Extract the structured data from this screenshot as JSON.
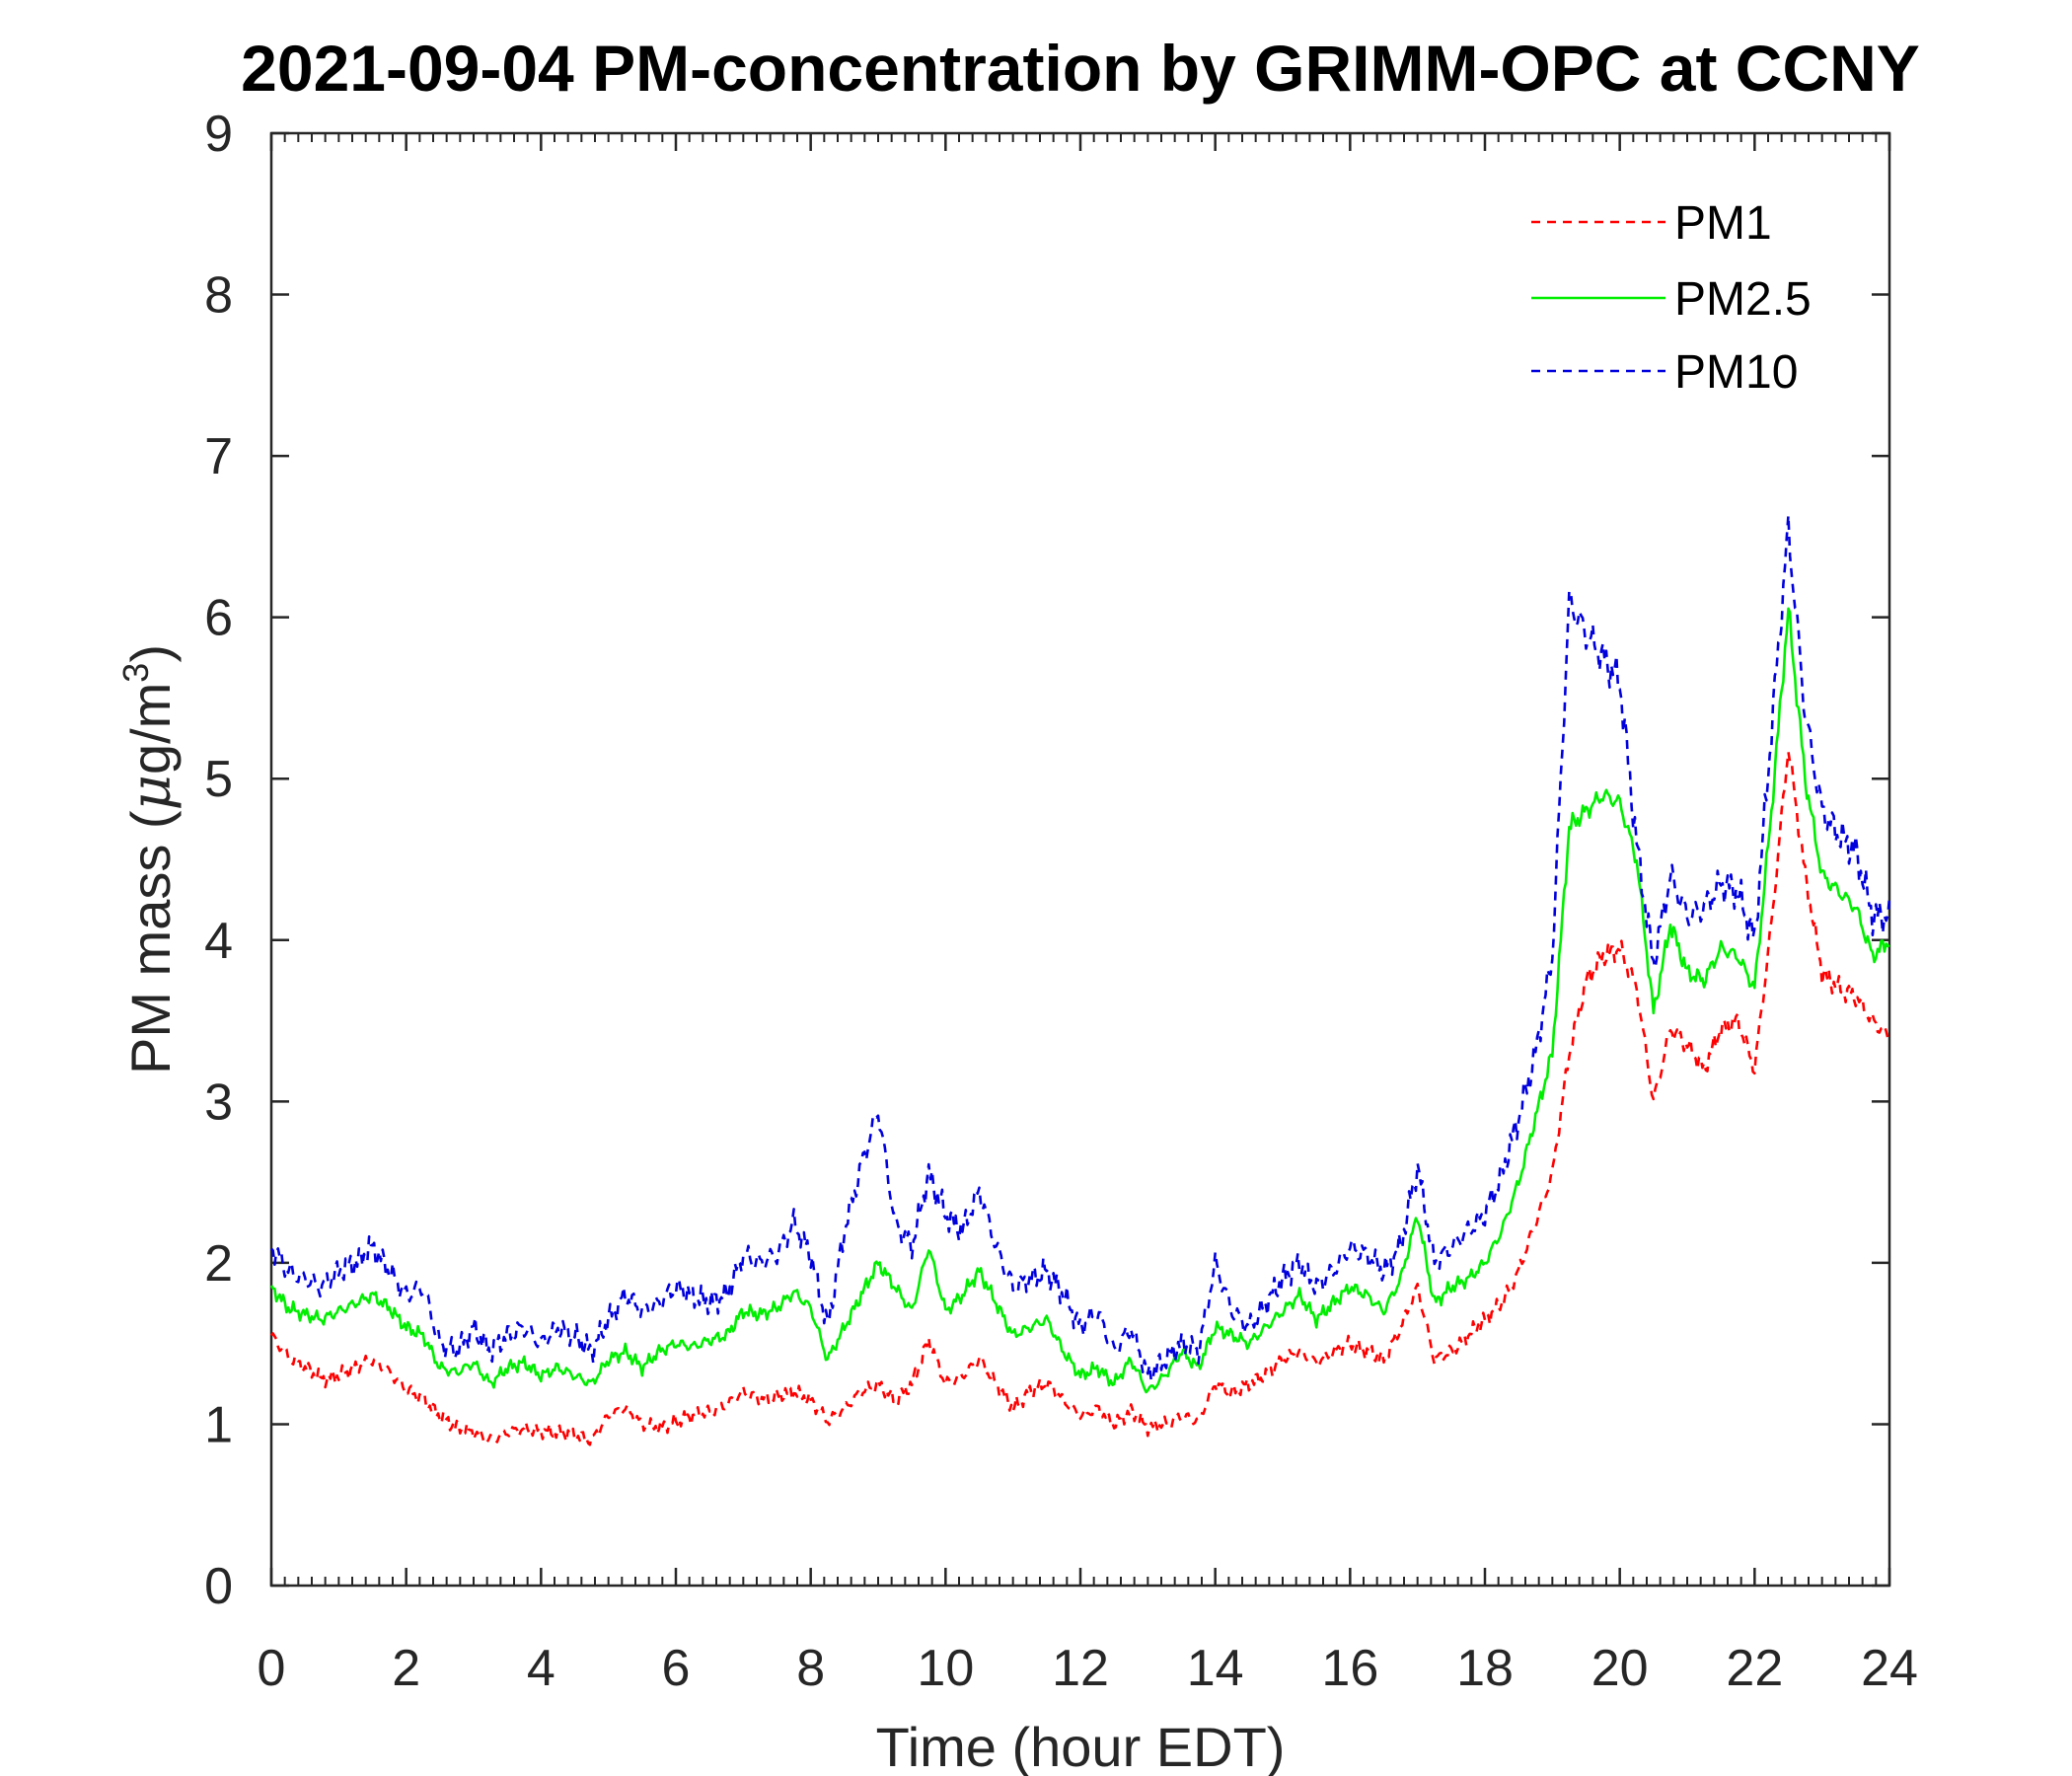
{
  "chart_data": {
    "type": "line",
    "title": "2021-09-04 PM-concentration by GRIMM-OPC at CCNY",
    "xlabel": "Time (hour EDT)",
    "ylabel_prefix": "PM mass (",
    "ylabel_mu": "μ",
    "ylabel_mid": "g/m",
    "ylabel_sup": "3",
    "ylabel_suffix": ")",
    "xlim": [
      0,
      24
    ],
    "ylim": [
      0,
      9
    ],
    "xticks": [
      0,
      2,
      4,
      6,
      8,
      10,
      12,
      14,
      16,
      18,
      20,
      22,
      24
    ],
    "yticks": [
      0,
      1,
      2,
      3,
      4,
      5,
      6,
      7,
      8,
      9
    ],
    "legend_position": "top-right",
    "grid": false,
    "series": [
      {
        "name": "PM1",
        "color": "#ff0000",
        "style": "dashed",
        "x": [
          0,
          0.25,
          0.5,
          0.75,
          1.0,
          1.25,
          1.5,
          1.75,
          2.0,
          2.25,
          2.5,
          2.75,
          3.0,
          3.25,
          3.5,
          3.75,
          4.0,
          4.25,
          4.5,
          4.75,
          5.0,
          5.25,
          5.5,
          5.75,
          6.0,
          6.25,
          6.5,
          6.75,
          7.0,
          7.25,
          7.5,
          7.75,
          8.0,
          8.25,
          8.5,
          8.75,
          9.0,
          9.25,
          9.5,
          9.75,
          10.0,
          10.25,
          10.5,
          10.75,
          11.0,
          11.25,
          11.5,
          11.75,
          12.0,
          12.25,
          12.5,
          12.75,
          13.0,
          13.25,
          13.5,
          13.75,
          14.0,
          14.25,
          14.5,
          14.75,
          15.0,
          15.25,
          15.5,
          15.75,
          16.0,
          16.25,
          16.5,
          16.75,
          17.0,
          17.25,
          17.5,
          17.75,
          18.0,
          18.25,
          18.5,
          18.75,
          19.0,
          19.25,
          19.5,
          19.75,
          20.0,
          20.25,
          20.5,
          20.75,
          21.0,
          21.25,
          21.5,
          21.75,
          22.0,
          22.25,
          22.5,
          22.75,
          23.0,
          23.25,
          23.5,
          23.75,
          24.0
        ],
        "y": [
          1.55,
          1.42,
          1.35,
          1.28,
          1.3,
          1.35,
          1.4,
          1.32,
          1.22,
          1.15,
          1.05,
          0.98,
          0.95,
          0.9,
          0.95,
          0.97,
          0.96,
          0.95,
          0.93,
          0.9,
          1.05,
          1.1,
          1.0,
          0.98,
          1.02,
          1.05,
          1.08,
          1.12,
          1.2,
          1.15,
          1.18,
          1.2,
          1.15,
          1.02,
          1.1,
          1.2,
          1.25,
          1.15,
          1.25,
          1.52,
          1.25,
          1.3,
          1.4,
          1.25,
          1.1,
          1.2,
          1.25,
          1.15,
          1.05,
          1.1,
          1.0,
          1.08,
          0.98,
          1.0,
          1.05,
          1.02,
          1.25,
          1.2,
          1.25,
          1.3,
          1.4,
          1.45,
          1.38,
          1.45,
          1.5,
          1.45,
          1.4,
          1.6,
          1.85,
          1.4,
          1.45,
          1.55,
          1.65,
          1.75,
          1.95,
          2.25,
          2.55,
          3.3,
          3.75,
          3.9,
          3.95,
          3.7,
          3.0,
          3.45,
          3.35,
          3.2,
          3.45,
          3.5,
          3.2,
          4.1,
          5.2,
          4.4,
          3.8,
          3.7,
          3.65,
          3.5,
          3.4
        ]
      },
      {
        "name": "PM2.5",
        "color": "#00ee00",
        "style": "solid",
        "x": [
          0,
          0.25,
          0.5,
          0.75,
          1.0,
          1.25,
          1.5,
          1.75,
          2.0,
          2.25,
          2.5,
          2.75,
          3.0,
          3.25,
          3.5,
          3.75,
          4.0,
          4.25,
          4.5,
          4.75,
          5.0,
          5.25,
          5.5,
          5.75,
          6.0,
          6.25,
          6.5,
          6.75,
          7.0,
          7.25,
          7.5,
          7.75,
          8.0,
          8.25,
          8.5,
          8.75,
          9.0,
          9.25,
          9.5,
          9.75,
          10.0,
          10.25,
          10.5,
          10.75,
          11.0,
          11.25,
          11.5,
          11.75,
          12.0,
          12.25,
          12.5,
          12.75,
          13.0,
          13.25,
          13.5,
          13.75,
          14.0,
          14.25,
          14.5,
          14.75,
          15.0,
          15.25,
          15.5,
          15.75,
          16.0,
          16.25,
          16.5,
          16.75,
          17.0,
          17.25,
          17.5,
          17.75,
          18.0,
          18.25,
          18.5,
          18.75,
          19.0,
          19.25,
          19.5,
          19.75,
          20.0,
          20.25,
          20.5,
          20.75,
          21.0,
          21.25,
          21.5,
          21.75,
          22.0,
          22.25,
          22.5,
          22.75,
          23.0,
          23.25,
          23.5,
          23.75,
          24.0
        ],
        "y": [
          1.85,
          1.72,
          1.68,
          1.65,
          1.7,
          1.75,
          1.8,
          1.72,
          1.6,
          1.55,
          1.35,
          1.32,
          1.38,
          1.25,
          1.35,
          1.38,
          1.3,
          1.35,
          1.3,
          1.25,
          1.4,
          1.45,
          1.35,
          1.45,
          1.5,
          1.48,
          1.52,
          1.55,
          1.7,
          1.68,
          1.72,
          1.82,
          1.72,
          1.4,
          1.6,
          1.8,
          2.0,
          1.85,
          1.7,
          2.1,
          1.7,
          1.8,
          1.95,
          1.75,
          1.55,
          1.6,
          1.65,
          1.45,
          1.3,
          1.35,
          1.25,
          1.4,
          1.2,
          1.3,
          1.45,
          1.35,
          1.6,
          1.55,
          1.5,
          1.6,
          1.7,
          1.8,
          1.65,
          1.75,
          1.85,
          1.8,
          1.7,
          1.9,
          2.3,
          1.75,
          1.85,
          1.9,
          2.0,
          2.2,
          2.5,
          2.9,
          3.3,
          4.7,
          4.8,
          4.9,
          4.85,
          4.5,
          3.55,
          4.1,
          3.8,
          3.75,
          3.95,
          3.9,
          3.7,
          4.8,
          6.05,
          5.0,
          4.4,
          4.3,
          4.2,
          3.9,
          4.0
        ]
      },
      {
        "name": "PM10",
        "color": "#0000dd",
        "style": "dashed",
        "x": [
          0,
          0.25,
          0.5,
          0.75,
          1.0,
          1.25,
          1.5,
          1.75,
          2.0,
          2.25,
          2.5,
          2.75,
          3.0,
          3.25,
          3.5,
          3.75,
          4.0,
          4.25,
          4.5,
          4.75,
          5.0,
          5.25,
          5.5,
          5.75,
          6.0,
          6.25,
          6.5,
          6.75,
          7.0,
          7.25,
          7.5,
          7.75,
          8.0,
          8.25,
          8.5,
          8.75,
          9.0,
          9.25,
          9.5,
          9.75,
          10.0,
          10.25,
          10.5,
          10.75,
          11.0,
          11.25,
          11.5,
          11.75,
          12.0,
          12.25,
          12.5,
          12.75,
          13.0,
          13.25,
          13.5,
          13.75,
          14.0,
          14.25,
          14.5,
          14.75,
          15.0,
          15.25,
          15.5,
          15.75,
          16.0,
          16.25,
          16.5,
          16.75,
          17.0,
          17.25,
          17.5,
          17.75,
          18.0,
          18.25,
          18.5,
          18.75,
          19.0,
          19.25,
          19.5,
          19.75,
          20.0,
          20.25,
          20.5,
          20.75,
          21.0,
          21.25,
          21.5,
          21.75,
          22.0,
          22.25,
          22.5,
          22.75,
          23.0,
          23.25,
          23.5,
          23.75,
          24.0
        ],
        "y": [
          2.1,
          1.95,
          1.9,
          1.85,
          1.95,
          2.0,
          2.1,
          1.95,
          1.8,
          1.85,
          1.5,
          1.45,
          1.6,
          1.45,
          1.55,
          1.6,
          1.5,
          1.6,
          1.55,
          1.45,
          1.65,
          1.8,
          1.7,
          1.75,
          1.85,
          1.8,
          1.75,
          1.8,
          2.05,
          2.0,
          2.05,
          2.25,
          2.05,
          1.6,
          2.2,
          2.6,
          2.95,
          2.25,
          2.1,
          2.55,
          2.3,
          2.2,
          2.45,
          2.1,
          1.85,
          1.9,
          1.95,
          1.8,
          1.6,
          1.7,
          1.45,
          1.6,
          1.3,
          1.4,
          1.5,
          1.45,
          2.0,
          1.7,
          1.6,
          1.75,
          1.9,
          2.0,
          1.85,
          1.95,
          2.1,
          2.05,
          1.95,
          2.1,
          2.6,
          2.0,
          2.1,
          2.2,
          2.3,
          2.55,
          2.9,
          3.3,
          3.9,
          6.1,
          5.9,
          5.75,
          5.6,
          4.6,
          3.85,
          4.4,
          4.15,
          4.2,
          4.35,
          4.3,
          4.0,
          5.3,
          6.55,
          5.4,
          4.8,
          4.65,
          4.55,
          4.15,
          4.15
        ]
      }
    ]
  }
}
